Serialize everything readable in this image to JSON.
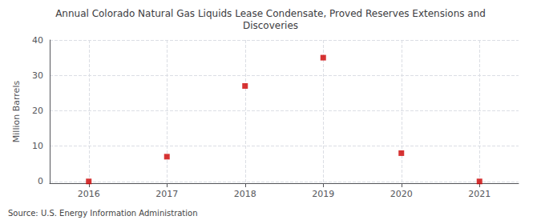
{
  "chart_data": {
    "type": "scatter",
    "title": "Annual Colorado Natural Gas Liquids Lease Condensate, Proved Reserves Extensions and\nDiscoveries",
    "y_label": "Million Barrels",
    "annotations": [
      "Source: U.S. Energy Information Administration"
    ],
    "x": [
      2016,
      2017,
      2018,
      2019,
      2020,
      2021
    ],
    "values": [
      0.0,
      7.0,
      27.0,
      35.0,
      8.0,
      0.0
    ],
    "color": "#cc0000",
    "marker": "square",
    "xlim": [
      2015.5,
      2021.5
    ],
    "xticks": [
      2016,
      2017,
      2018,
      2019,
      2020,
      2021
    ],
    "ylim": [
      -0.5,
      40
    ],
    "yticks": [
      0,
      10,
      20,
      30,
      40
    ],
    "grid": true
  }
}
